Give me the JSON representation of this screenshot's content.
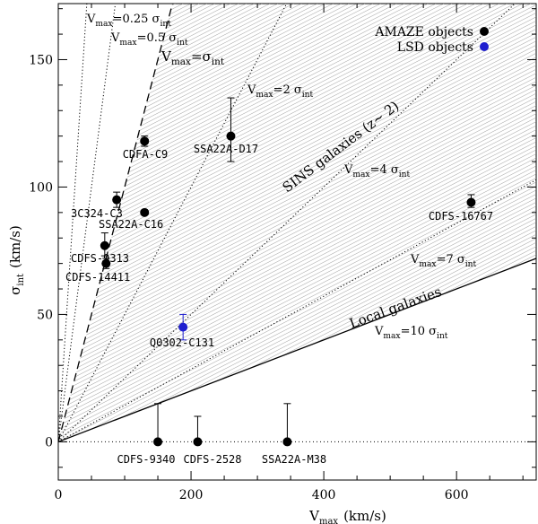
{
  "chart_data": {
    "type": "scatter",
    "xlabel_main": "V",
    "xlabel_sub": "max",
    "xlabel_unit": "(km/s)",
    "ylabel_main": "σ",
    "ylabel_sub": "int",
    "ylabel_unit": "(km/s)",
    "xlim": [
      0,
      720
    ],
    "ylim": [
      -15,
      172
    ],
    "x_ticks": [
      "0",
      "200",
      "400",
      "600"
    ],
    "y_ticks": [
      "0",
      "50",
      "100",
      "150"
    ],
    "legend": [
      {
        "label": "AMAZE objects",
        "color": "#000000"
      },
      {
        "label": "LSD objects",
        "color": "#1f1fcf"
      }
    ],
    "shaded_region": {
      "description": "SINS galaxies (z~2)",
      "ratio_min": 0.1,
      "ratio_max": 1.0
    },
    "reference_lines": [
      {
        "ratio": 4.0,
        "style": "dotted",
        "label_main": "V",
        "label_sub": "max",
        "label_rest": "=0.25 σ",
        "label_rest_sub": "int"
      },
      {
        "ratio": 2.0,
        "style": "dotted",
        "label_main": "V",
        "label_sub": "max",
        "label_rest": "=0.5 σ",
        "label_rest_sub": "int"
      },
      {
        "ratio": 1.0,
        "style": "dashed",
        "label_main": "V",
        "label_sub": "max",
        "label_rest": "=σ",
        "label_rest_sub": "int"
      },
      {
        "ratio": 0.5,
        "style": "dotted",
        "label_main": "V",
        "label_sub": "max",
        "label_rest": "=2 σ",
        "label_rest_sub": "int"
      },
      {
        "ratio": 0.25,
        "style": "dotted",
        "label_main": "V",
        "label_sub": "max",
        "label_rest": "=4 σ",
        "label_rest_sub": "int"
      },
      {
        "ratio": 0.142857,
        "style": "dotted",
        "label_main": "V",
        "label_sub": "max",
        "label_rest": "=7 σ",
        "label_rest_sub": "int"
      },
      {
        "ratio": 0.1,
        "style": "solid",
        "label_main": "V",
        "label_sub": "max",
        "label_rest": "=10 σ",
        "label_rest_sub": "int"
      }
    ],
    "region_labels": {
      "sins": "SINS galaxies (z~ 2)",
      "local": "Local galaxies"
    },
    "points": [
      {
        "name": "CDFA-C9",
        "x": 130,
        "y": 118,
        "err_low": 2,
        "err_high": 2,
        "color": "#000000"
      },
      {
        "name": "SSA22A-D17",
        "x": 260,
        "y": 120,
        "err_low": 10,
        "err_high": 15,
        "color": "#000000"
      },
      {
        "name": "3C324-C3",
        "x": 88,
        "y": 95,
        "err_low": 3,
        "err_high": 3,
        "color": "#000000"
      },
      {
        "name": "SSA22A-C16",
        "x": 130,
        "y": 90,
        "err_low": 0,
        "err_high": 0,
        "color": "#000000"
      },
      {
        "name": "CDFS-9313",
        "x": 70,
        "y": 77,
        "err_low": 4,
        "err_high": 5,
        "color": "#000000"
      },
      {
        "name": "CDFS-14411",
        "x": 72,
        "y": 70,
        "err_low": 2,
        "err_high": 2,
        "color": "#000000"
      },
      {
        "name": "CDFS-16767",
        "x": 622,
        "y": 94,
        "err_low": 2,
        "err_high": 3,
        "color": "#000000"
      },
      {
        "name": "Q0302-C131",
        "x": 188,
        "y": 45,
        "err_low": 5,
        "err_high": 5,
        "color": "#1f1fcf"
      },
      {
        "name": "CDFS-9340",
        "x": 150,
        "y": 0,
        "err_low": 0,
        "err_high": 15,
        "color": "#000000"
      },
      {
        "name": "CDFS-2528",
        "x": 210,
        "y": 0,
        "err_low": 0,
        "err_high": 10,
        "color": "#000000"
      },
      {
        "name": "SSA22A-M38",
        "x": 345,
        "y": 0,
        "err_low": 0,
        "err_high": 15,
        "color": "#000000"
      }
    ]
  }
}
